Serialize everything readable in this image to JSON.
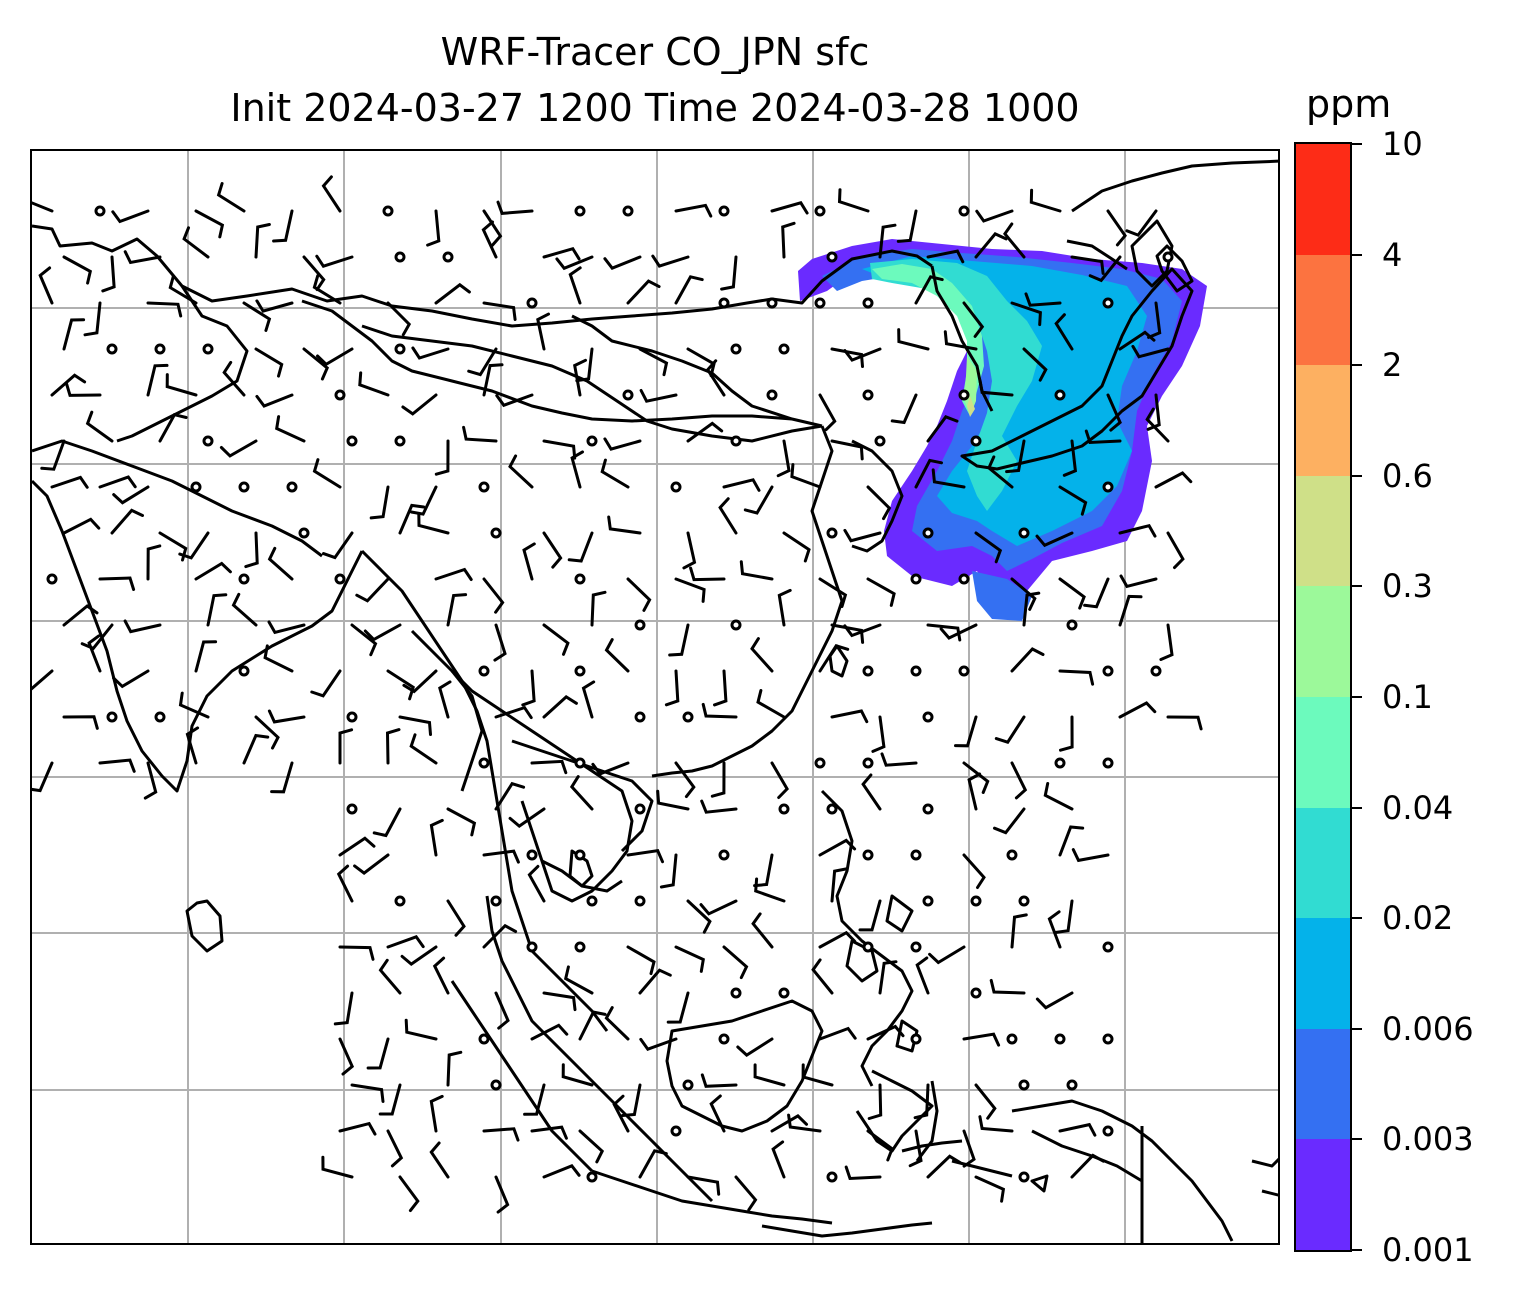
{
  "title": {
    "line1": "WRF-Tracer CO_JPN sfc",
    "line2": "Init 2024-03-27 1200 Time 2024-03-28 1000"
  },
  "colorbar": {
    "unit": "ppm",
    "levels": [
      "0.001",
      "0.003",
      "0.006",
      "0.02",
      "0.04",
      "0.1",
      "0.3",
      "0.6",
      "2",
      "4",
      "10"
    ],
    "colors": [
      "#6a2bff",
      "#3470f2",
      "#04b2ea",
      "#31dcd2",
      "#6cfabd",
      "#9cf99a",
      "#cfe088",
      "#fdb061",
      "#fc7340",
      "#fd2c17"
    ]
  },
  "map": {
    "grid_lines": true,
    "line_color": "#000000",
    "grid_color": "#b0b0b0",
    "content": "surface tracer concentration contours with wind barbs, coastlines and borders"
  }
}
